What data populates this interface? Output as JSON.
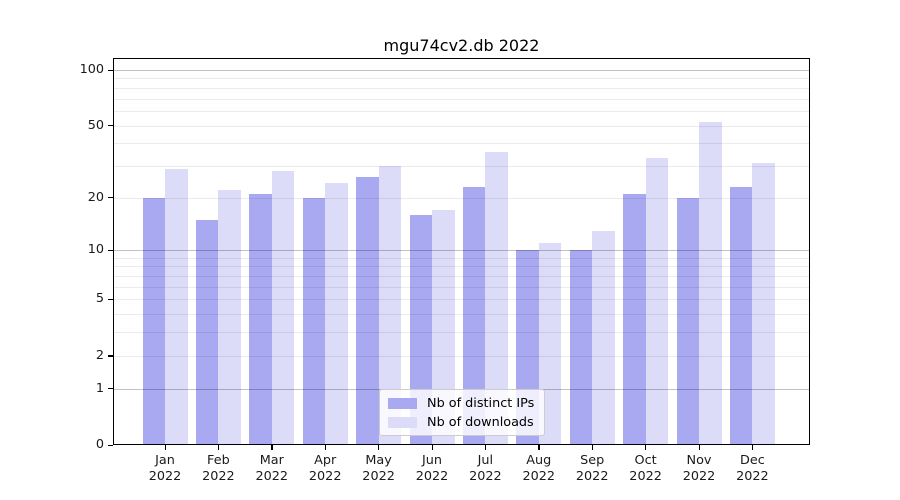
{
  "chart_data": {
    "type": "bar",
    "title": "mgu74cv2.db 2022",
    "categories": [
      "Jan 2022",
      "Feb 2022",
      "Mar 2022",
      "Apr 2022",
      "May 2022",
      "Jun 2022",
      "Jul 2022",
      "Aug 2022",
      "Sep 2022",
      "Oct 2022",
      "Nov 2022",
      "Dec 2022"
    ],
    "series": [
      {
        "name": "Nb of distinct IPs",
        "color": "#a9a9f1",
        "values": [
          20,
          15,
          21,
          20,
          26,
          16,
          23,
          10,
          10,
          21,
          20,
          23
        ]
      },
      {
        "name": "Nb of downloads",
        "color": "#dcdcf9",
        "values": [
          29,
          22,
          28,
          24,
          30,
          17,
          36,
          11,
          13,
          33,
          52,
          31
        ]
      }
    ],
    "xlabel": "",
    "ylabel": "",
    "y_axis": {
      "scale": "log1p",
      "tick_labels": [
        100,
        50,
        20,
        10,
        5,
        2,
        1,
        0
      ],
      "major_gridlines": [
        1,
        10,
        100
      ],
      "minor_gridlines": [
        2,
        3,
        4,
        5,
        6,
        7,
        8,
        9,
        20,
        30,
        40,
        50,
        60,
        70,
        80,
        90
      ],
      "ylim": [
        0,
        110
      ]
    },
    "legend_position": "lower center",
    "grid": true
  },
  "colors": {
    "ips_bar": "#a9a9f1",
    "downloads_bar": "#dcdcf9",
    "axis": "#000000",
    "grid_major": "#c2c2c2",
    "grid_minor": "#ebebeb",
    "background": "#ffffff"
  }
}
